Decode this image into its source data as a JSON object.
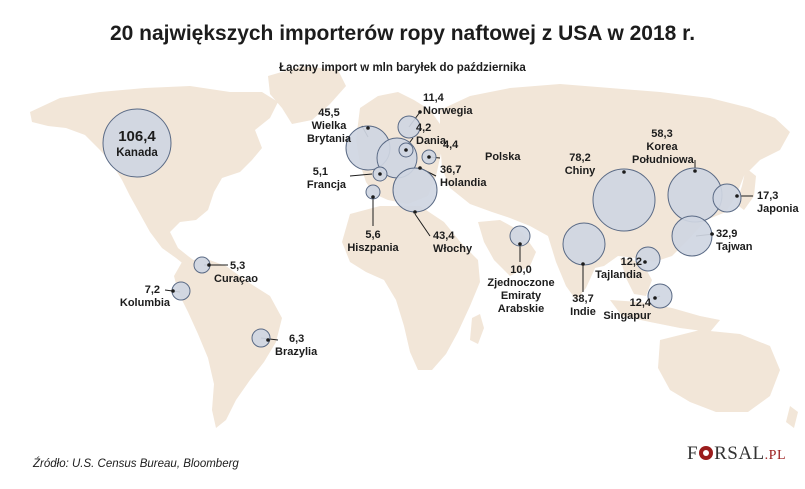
{
  "title": "20 największych importerów ropy naftowej z USA w 2018 r.",
  "subtitle": "Łączny import w mln baryłek do października",
  "source": "Źródło: U.S. Census Bureau, Bloomberg",
  "logo": {
    "main": "F",
    "rest": "RSAL",
    "tld": ".PL"
  },
  "colors": {
    "land": "#f2e6d8",
    "bubble": "#cfd6e2",
    "bubble_stroke": "#5a6a85",
    "leader": "#1c1c1c"
  },
  "countries": [
    {
      "name": "Kanada",
      "value_label": "106,4",
      "value": 106.4
    },
    {
      "name": "Wielka Brytania",
      "value_label": "45,5",
      "value": 45.5
    },
    {
      "name": "Norwegia",
      "value_label": "11,4",
      "value": 11.4
    },
    {
      "name": "Dania",
      "value_label": "4,2",
      "value": 4.2
    },
    {
      "name": "Polska",
      "value_label": "4,4",
      "value": 4.4
    },
    {
      "name": "Holandia",
      "value_label": "36,7",
      "value": 36.7
    },
    {
      "name": "Francja",
      "value_label": "5,1",
      "value": 5.1
    },
    {
      "name": "Hiszpania",
      "value_label": "5,6",
      "value": 5.6
    },
    {
      "name": "Włochy",
      "value_label": "43,4",
      "value": 43.4
    },
    {
      "name": "Chiny",
      "value_label": "78,2",
      "value": 78.2
    },
    {
      "name": "Korea Południowa",
      "value_label": "58,3",
      "value": 58.3
    },
    {
      "name": "Japonia",
      "value_label": "17,3",
      "value": 17.3
    },
    {
      "name": "Tajwan",
      "value_label": "32,9",
      "value": 32.9
    },
    {
      "name": "Zjednoczone Emiraty Arabskie",
      "value_label": "10,0",
      "value": 10.0
    },
    {
      "name": "Indie",
      "value_label": "38,7",
      "value": 38.7
    },
    {
      "name": "Tajlandia",
      "value_label": "12,2",
      "value": 12.2
    },
    {
      "name": "Singapur",
      "value_label": "12,4",
      "value": 12.4
    },
    {
      "name": "Curaçao",
      "value_label": "5,3",
      "value": 5.3
    },
    {
      "name": "Kolumbia",
      "value_label": "7,2",
      "value": 7.2
    },
    {
      "name": "Brazylia",
      "value_label": "6,3",
      "value": 6.3
    }
  ],
  "labels": {
    "kanada": {
      "value": "106,4",
      "name": "Kanada"
    },
    "wb": {
      "value": "45,5",
      "name1": "Wielka",
      "name2": "Brytania"
    },
    "norwegia": {
      "value": "11,4",
      "name": "Norwegia"
    },
    "dania": {
      "value": "4,2",
      "name": "Dania"
    },
    "polska": {
      "value": "4,4",
      "name": "Polska"
    },
    "holandia": {
      "value": "36,7",
      "name": "Holandia"
    },
    "francja": {
      "value": "5,1",
      "name": "Francja"
    },
    "hiszpania": {
      "value": "5,6",
      "name": "Hiszpania"
    },
    "wlochy": {
      "value": "43,4",
      "name": "Włochy"
    },
    "chiny": {
      "value": "78,2",
      "name": "Chiny"
    },
    "korea": {
      "value": "58,3",
      "name1": "Korea",
      "name2": "Południowa"
    },
    "japonia": {
      "value": "17,3",
      "name": "Japonia"
    },
    "tajwan": {
      "value": "32,9",
      "name": "Tajwan"
    },
    "zea": {
      "value": "10,0",
      "name1": "Zjednoczone",
      "name2": "Emiraty",
      "name3": "Arabskie"
    },
    "indie": {
      "value": "38,7",
      "name": "Indie"
    },
    "tajlandia": {
      "value": "12,2",
      "name": "Tajlandia"
    },
    "singapur": {
      "value": "12,4",
      "name": "Singapur"
    },
    "curacao": {
      "value": "5,3",
      "name": "Curaçao"
    },
    "kolumbia": {
      "value": "7,2",
      "name": "Kolumbia"
    },
    "brazylia": {
      "value": "6,3",
      "name": "Brazylia"
    }
  }
}
